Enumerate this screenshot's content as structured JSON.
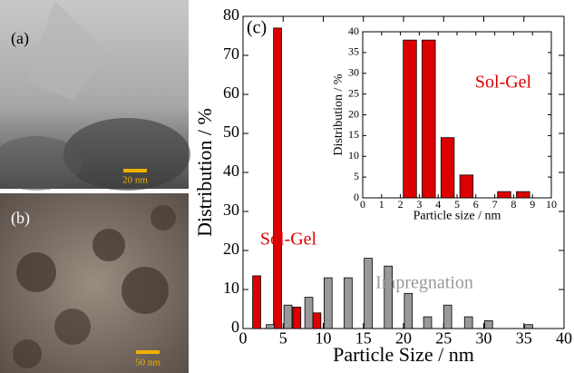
{
  "panels": {
    "a": {
      "label": "(a)",
      "scale_bar": "20 nm"
    },
    "b": {
      "label": "(b)",
      "scale_bar": "50 nm"
    }
  },
  "chart_data": [
    {
      "type": "bar",
      "label": "(c)",
      "xlabel": "Particle Size / nm",
      "ylabel": "Distribution / %",
      "xlim": [
        0,
        40
      ],
      "xticks": [
        0,
        5,
        10,
        15,
        20,
        25,
        30,
        35,
        40
      ],
      "ylim": [
        0,
        80
      ],
      "yticks": [
        0,
        10,
        20,
        30,
        40,
        50,
        60,
        70,
        80
      ],
      "series": [
        {
          "name": "Sol-Gel",
          "color": "#dd0000",
          "x": [
            1.7,
            4.3,
            6.7,
            9.2
          ],
          "values": [
            13.5,
            77,
            5.5,
            4
          ]
        },
        {
          "name": "Impregnation",
          "color": "#999999",
          "x": [
            3.4,
            5.6,
            8.2,
            10.6,
            13.1,
            15.6,
            18.1,
            20.6,
            23.0,
            25.5,
            28.1,
            30.6,
            35.6
          ],
          "values": [
            1,
            6,
            8,
            13,
            13,
            18,
            16,
            9,
            3,
            6,
            3,
            2,
            1
          ]
        }
      ]
    },
    {
      "type": "bar",
      "xlabel": "Particle size / nm",
      "ylabel": "Distribution / %",
      "xlim": [
        0,
        10
      ],
      "xticks": [
        0,
        1,
        2,
        3,
        4,
        5,
        6,
        7,
        8,
        9,
        10
      ],
      "ylim": [
        0,
        40
      ],
      "yticks": [
        0,
        5,
        10,
        15,
        20,
        25,
        30,
        35,
        40
      ],
      "series": [
        {
          "name": "Sol-Gel",
          "color": "#dd0000",
          "x": [
            2.5,
            3.5,
            4.5,
            5.5,
            7.5,
            8.5
          ],
          "values": [
            38,
            38,
            14.5,
            5.5,
            1.5,
            1.5
          ]
        }
      ]
    }
  ]
}
